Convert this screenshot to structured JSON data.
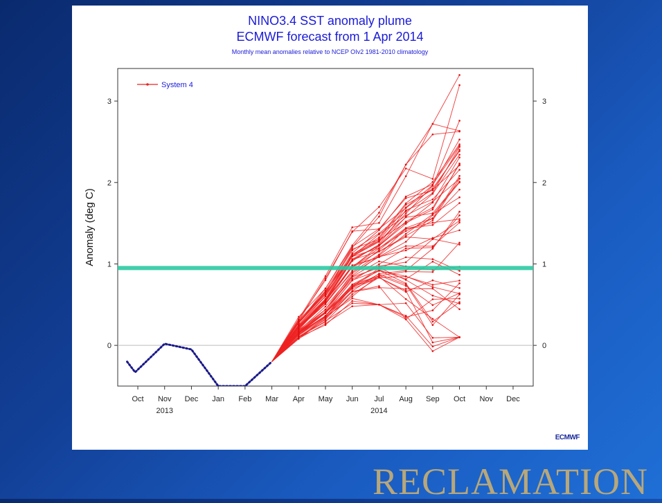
{
  "slide": {
    "brand": "RECLAMATION",
    "logo": "ECMWF"
  },
  "chart_data": {
    "type": "line",
    "title": "NINO3.4 SST anomaly plume",
    "subtitle": "ECMWF forecast from 1 Apr 2014",
    "note": "Monthly mean anomalies relative to NCEP OIv2 1981-2010 climatology",
    "ylabel": "Anomaly (deg C)",
    "ylim": [
      -0.5,
      3.4
    ],
    "yticks": [
      0,
      1,
      2,
      3
    ],
    "categories": [
      "Oct",
      "Nov",
      "Dec",
      "Jan",
      "Feb",
      "Mar",
      "Apr",
      "May",
      "Jun",
      "Jul",
      "Aug",
      "Sep",
      "Oct",
      "Nov",
      "Dec"
    ],
    "year_labels": [
      {
        "label": "2013",
        "index": 1
      },
      {
        "label": "2014",
        "index": 9
      }
    ],
    "legend": {
      "label": "System 4",
      "position": "top-left",
      "color": "#ee2222"
    },
    "reference_line": {
      "y": 0.95,
      "color": "#2ec9a2"
    },
    "observed": {
      "color": "#1a1a8a",
      "points": [
        [
          -0.4,
          -0.2
        ],
        [
          -0.1,
          -0.33
        ],
        [
          1,
          0.02
        ],
        [
          2,
          -0.05
        ],
        [
          3,
          -0.55
        ],
        [
          4,
          -0.55
        ],
        [
          5,
          -0.2
        ]
      ]
    },
    "ensemble_summary": {
      "start": {
        "x": 5,
        "y": -0.2
      },
      "months": [
        6,
        7,
        8,
        9,
        10,
        11,
        12
      ],
      "median": [
        0.2,
        0.5,
        0.92,
        1.1,
        1.3,
        1.5,
        1.75
      ],
      "p10": [
        0.12,
        0.33,
        0.65,
        0.82,
        0.65,
        0.55,
        0.6
      ],
      "p90": [
        0.3,
        0.7,
        1.25,
        1.45,
        1.85,
        2.05,
        2.65
      ],
      "min": [
        0.08,
        0.25,
        0.48,
        0.5,
        0.32,
        -0.08,
        0.1
      ],
      "max": [
        0.35,
        0.85,
        1.45,
        1.7,
        2.22,
        2.72,
        3.32
      ],
      "members": 51
    }
  }
}
